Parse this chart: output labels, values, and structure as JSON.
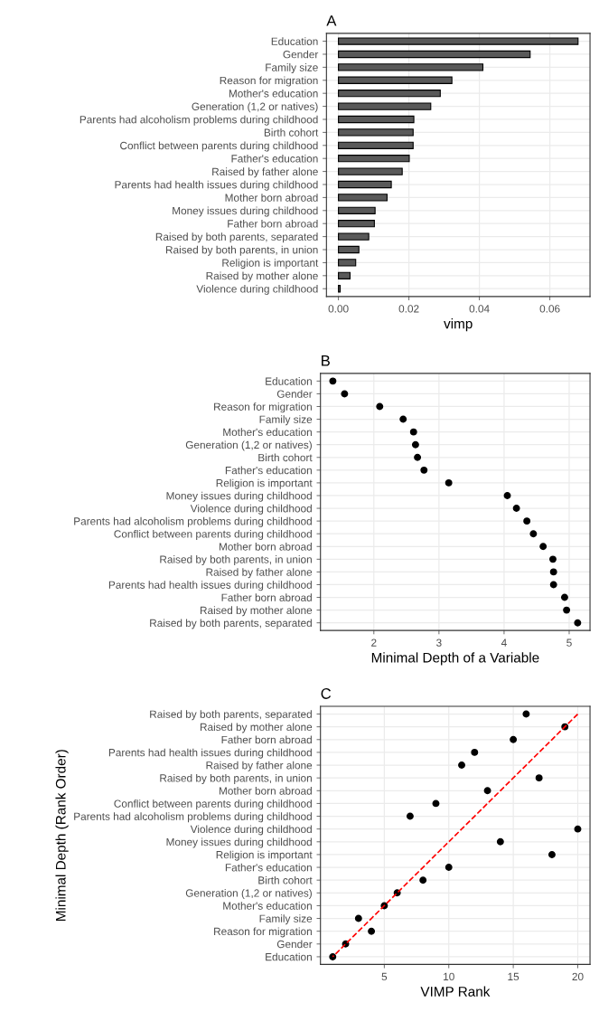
{
  "chart_data": [
    {
      "type": "bar",
      "title": "A",
      "xlabel": "vimp",
      "orientation": "horizontal",
      "color": "#595959",
      "grid": true,
      "categories": [
        "Education",
        "Gender",
        "Family size",
        "Reason for migration",
        "Mother's education",
        "Generation (1,2 or natives)",
        "Parents had alcoholism problems during childhood",
        "Birth cohort",
        "Conflict between parents during childhood",
        "Father's education",
        "Raised by father alone",
        "Parents had health issues during childhood",
        "Mother born abroad",
        "Money issues during childhood",
        "Father born abroad",
        "Raised by both parents, separated",
        "Raised by both parents, in union",
        "Religion is important",
        "Raised by mother alone",
        "Violence during childhood"
      ],
      "values": [
        0.068,
        0.0544,
        0.041,
        0.0322,
        0.0289,
        0.0262,
        0.0214,
        0.0212,
        0.0212,
        0.0201,
        0.0181,
        0.015,
        0.0138,
        0.0104,
        0.0102,
        0.0086,
        0.0058,
        0.0049,
        0.0033,
        0.0005
      ],
      "xlim": [
        -0.0034,
        0.0714
      ],
      "xticks": [
        {
          "value": 0,
          "label": "0.00"
        },
        {
          "value": 0.02,
          "label": "0.02"
        },
        {
          "value": 0.04,
          "label": "0.04"
        },
        {
          "value": 0.06,
          "label": "0.06"
        }
      ]
    },
    {
      "type": "scatter",
      "title": "B",
      "xlabel": "Minimal Depth of a Variable",
      "orientation": "horizontal",
      "color": "#000000",
      "marker": "circle",
      "grid": true,
      "categories": [
        "Education",
        "Gender",
        "Reason for migration",
        "Family size",
        "Mother's education",
        "Generation (1,2 or natives)",
        "Birth cohort",
        "Father's education",
        "Religion is important",
        "Money issues during childhood",
        "Violence during childhood",
        "Parents had alcoholism problems during childhood",
        "Conflict between parents during childhood",
        "Mother born abroad",
        "Raised by both parents, in union",
        "Raised by father alone",
        "Parents had health issues during childhood",
        "Father born abroad",
        "Raised by mother alone",
        "Raised by both parents, separated"
      ],
      "values": [
        1.37,
        1.55,
        2.09,
        2.45,
        2.61,
        2.64,
        2.67,
        2.77,
        3.15,
        4.05,
        4.19,
        4.35,
        4.45,
        4.6,
        4.75,
        4.76,
        4.76,
        4.93,
        4.96,
        5.13
      ],
      "xlim": [
        1.18,
        5.32
      ],
      "xticks": [
        2,
        3,
        4,
        5
      ]
    },
    {
      "type": "scatter",
      "title": "C",
      "xlabel": "VIMP Rank",
      "ylabel": "Minimal Depth (Rank Order)",
      "orientation": "horizontal",
      "grid": true,
      "categories": [
        "Raised by both parents, separated",
        "Raised by mother alone",
        "Father born abroad",
        "Parents had health issues during childhood",
        "Raised by father alone",
        "Raised by both parents, in union",
        "Mother born abroad",
        "Conflict between parents during childhood",
        "Parents had alcoholism problems during childhood",
        "Violence during childhood",
        "Money issues during childhood",
        "Religion is important",
        "Father's education",
        "Birth cohort",
        "Generation (1,2 or natives)",
        "Mother's education",
        "Family size",
        "Reason for migration",
        "Gender",
        "Education"
      ],
      "series": [
        {
          "type": "scatter",
          "color": "#000000",
          "marker": "circle",
          "values": [
            16,
            19,
            15,
            12,
            11,
            17,
            13,
            9,
            7,
            20,
            14,
            18,
            10,
            8,
            6,
            5,
            3,
            4,
            2,
            1
          ]
        },
        {
          "type": "line",
          "color": "#ff0000",
          "line_style": "dashed",
          "values": [
            20,
            19,
            18,
            17,
            16,
            15,
            14,
            13,
            12,
            11,
            10,
            9,
            8,
            7,
            6,
            5,
            4,
            3,
            2,
            1
          ]
        }
      ],
      "xlim": [
        0.05,
        20.95
      ],
      "xticks": [
        5,
        10,
        15,
        20
      ]
    }
  ]
}
